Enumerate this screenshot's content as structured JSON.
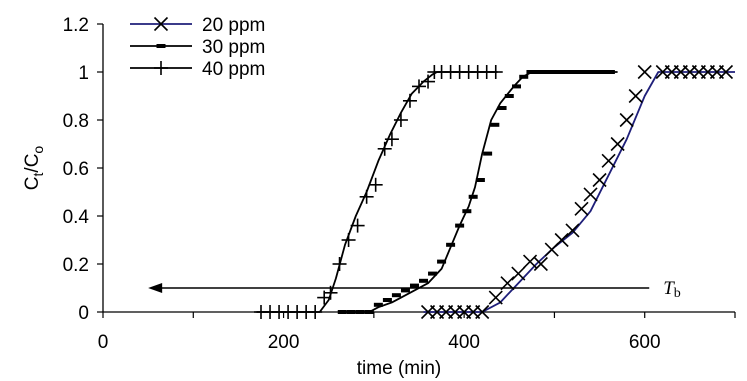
{
  "chart_data": {
    "type": "line",
    "title": "",
    "xlabel": "time (min)",
    "ylabel": {
      "main": "C",
      "sub1": "t",
      "mid": "/C",
      "sub2": "o"
    },
    "xlim": [
      0,
      700
    ],
    "ylim": [
      0,
      1.2
    ],
    "xticks": [
      "0",
      "200",
      "400",
      "600"
    ],
    "xtick_values": [
      0,
      200,
      400,
      600
    ],
    "yticks": [
      "0",
      "0.2",
      "0.4",
      "0.6",
      "0.8",
      "1",
      "1.2"
    ],
    "ytick_values": [
      0,
      0.2,
      0.4,
      0.6,
      0.8,
      1.0,
      1.2
    ],
    "grid": false,
    "legend_position": "top-left",
    "series": [
      {
        "name": "20 ppm",
        "marker": "x",
        "line_color": "#1f1f7a",
        "line_x": [
          355,
          400,
          410,
          420,
          440,
          460,
          480,
          500,
          520,
          540,
          560,
          580,
          600,
          615,
          700
        ],
        "line_y": [
          0,
          0,
          0,
          0,
          0.04,
          0.12,
          0.2,
          0.27,
          0.33,
          0.42,
          0.57,
          0.72,
          0.9,
          1.0,
          1.0
        ],
        "x": [
          360,
          370,
          380,
          390,
          400,
          410,
          420,
          435,
          448,
          460,
          473,
          485,
          497,
          508,
          520,
          530,
          540,
          550,
          560,
          570,
          580,
          590,
          600,
          620,
          630,
          640,
          650,
          660,
          670,
          680,
          690
        ],
        "y": [
          0,
          0,
          0,
          0,
          0,
          0,
          0,
          0.06,
          0.12,
          0.16,
          0.21,
          0.2,
          0.26,
          0.3,
          0.34,
          0.43,
          0.49,
          0.55,
          0.63,
          0.7,
          0.8,
          0.9,
          1.0,
          1.0,
          1.0,
          1.0,
          1.0,
          1.0,
          1.0,
          1.0,
          1.0
        ]
      },
      {
        "name": "30 ppm",
        "marker": "dash",
        "line_color": "#000000",
        "line_x": [
          265,
          295,
          305,
          320,
          340,
          360,
          375,
          385,
          395,
          405,
          412,
          420,
          430,
          440,
          455,
          465,
          475,
          570
        ],
        "line_y": [
          0,
          0,
          0.02,
          0.04,
          0.08,
          0.12,
          0.18,
          0.27,
          0.36,
          0.44,
          0.52,
          0.66,
          0.8,
          0.87,
          0.94,
          0.98,
          1.0,
          1.0
        ],
        "x": [
          265,
          275,
          285,
          295,
          305,
          315,
          325,
          335,
          345,
          355,
          365,
          375,
          385,
          395,
          403,
          410,
          418,
          426,
          434,
          442,
          450,
          458,
          466,
          474,
          482,
          490,
          498,
          506,
          514,
          522,
          530,
          538,
          546,
          554,
          562
        ],
        "y": [
          0,
          0,
          0,
          0,
          0.03,
          0.05,
          0.07,
          0.09,
          0.11,
          0.13,
          0.16,
          0.21,
          0.28,
          0.36,
          0.42,
          0.48,
          0.55,
          0.66,
          0.78,
          0.85,
          0.9,
          0.94,
          0.98,
          1.0,
          1.0,
          1.0,
          1.0,
          1.0,
          1.0,
          1.0,
          1.0,
          1.0,
          1.0,
          1.0,
          1.0
        ]
      },
      {
        "name": "40 ppm",
        "marker": "plus",
        "line_color": "#000000",
        "line_x": [
          170,
          240,
          250,
          258,
          268,
          280,
          292,
          305,
          318,
          330,
          342,
          355,
          365,
          370,
          437
        ],
        "line_y": [
          0,
          0,
          0.05,
          0.14,
          0.28,
          0.4,
          0.5,
          0.63,
          0.74,
          0.83,
          0.91,
          0.96,
          0.99,
          1.0,
          1.0
        ],
        "x": [
          175,
          185,
          195,
          205,
          215,
          225,
          235,
          245,
          252,
          262,
          272,
          282,
          292,
          302,
          312,
          320,
          330,
          340,
          350,
          360,
          367,
          375,
          385,
          395,
          405,
          415,
          425,
          435
        ],
        "y": [
          0,
          0,
          0,
          0,
          0,
          0,
          0,
          0.06,
          0.08,
          0.2,
          0.3,
          0.36,
          0.48,
          0.53,
          0.68,
          0.72,
          0.8,
          0.88,
          0.94,
          0.96,
          1.0,
          1.0,
          1.0,
          1.0,
          1.0,
          1.0,
          1.0,
          1.0
        ]
      }
    ],
    "annotation": {
      "text_main": "T",
      "text_sub": "b",
      "arrow_from_x": 605,
      "arrow_to_x": 50,
      "arrow_y": 0.1
    }
  }
}
